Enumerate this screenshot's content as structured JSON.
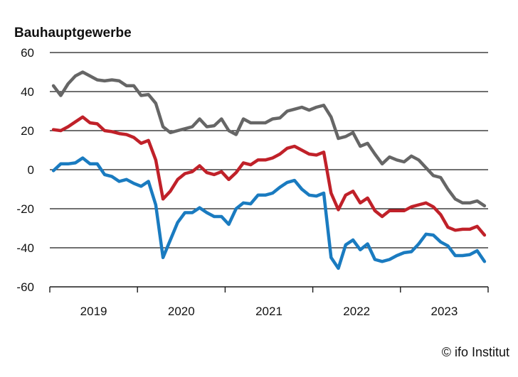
{
  "chart_data": {
    "type": "line",
    "title": "Bauhauptgewerbe",
    "xlabel": "",
    "ylabel": "",
    "ylim": [
      -60,
      60
    ],
    "yticks": [
      "60",
      "40",
      "20",
      "0",
      "-20",
      "-40",
      "-60"
    ],
    "xticks": [
      "2019",
      "2020",
      "2021",
      "2022",
      "2023"
    ],
    "grid": true,
    "x_start": "2019-01",
    "months": 60,
    "series": [
      {
        "color": "#666666",
        "values": [
          43,
          38,
          44,
          48,
          50,
          48,
          46,
          45.5,
          46,
          45.5,
          43,
          43,
          38,
          38.5,
          34,
          22,
          19,
          20,
          21,
          22,
          26,
          22,
          22.5,
          26,
          20,
          18,
          26,
          24,
          24,
          24,
          26,
          26.5,
          30,
          31,
          32,
          30.5,
          32,
          33,
          27,
          16,
          17,
          19,
          12,
          13.5,
          8,
          3,
          6.5,
          5,
          4,
          7,
          5,
          1,
          -3,
          -4,
          -10,
          -15,
          -17,
          -17,
          -16,
          -18.5
        ]
      },
      {
        "color": "#c02129",
        "values": [
          20.5,
          20,
          22,
          24.5,
          27,
          24,
          23.5,
          20,
          19.5,
          18.5,
          18,
          16.5,
          13.5,
          15,
          5,
          -15,
          -11,
          -5,
          -2,
          -1,
          2,
          -1.5,
          -2.5,
          -1,
          -5,
          -1.5,
          3.5,
          2.5,
          5,
          5,
          6,
          8,
          11,
          12,
          10,
          8,
          7.5,
          9,
          -12,
          -20.5,
          -13,
          -11,
          -17,
          -14.5,
          -21,
          -24,
          -21,
          -21,
          -21,
          -19,
          -18,
          -17,
          -19,
          -23,
          -29.5,
          -31,
          -30.5,
          -30.5,
          -29,
          -33.5
        ]
      },
      {
        "color": "#1a7bc0",
        "values": [
          -0.5,
          3,
          3,
          3.5,
          6,
          3,
          3,
          -2.5,
          -3.5,
          -6,
          -5,
          -7,
          -8.5,
          -6,
          -18,
          -45,
          -36,
          -27,
          -22,
          -22,
          -19.5,
          -22,
          -24,
          -24,
          -28,
          -20,
          -17,
          -17.5,
          -13,
          -13,
          -12,
          -9,
          -6.5,
          -5.5,
          -10,
          -13,
          -13.5,
          -12,
          -45,
          -50.5,
          -38.5,
          -36,
          -41,
          -38,
          -46,
          -47,
          -46,
          -44,
          -42.5,
          -42,
          -38,
          -33,
          -33.5,
          -37,
          -39,
          -44,
          -44,
          -43.5,
          -41.5,
          -47
        ]
      }
    ]
  },
  "credit": "© ifo Institut"
}
